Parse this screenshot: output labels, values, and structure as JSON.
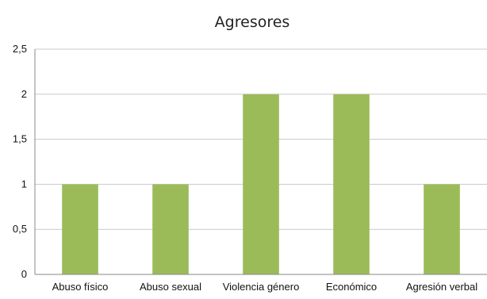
{
  "chart_data": {
    "type": "bar",
    "title": "Agresores",
    "categories": [
      "Abuso físico",
      "Abuso sexual",
      "Violencia género",
      "Económico",
      "Agresión verbal"
    ],
    "values": [
      1,
      1,
      2,
      2,
      1
    ],
    "ylim": [
      0,
      2.5
    ],
    "yticks": [
      "0",
      "0,5",
      "1",
      "1,5",
      "2",
      "2,5"
    ],
    "grid": true,
    "legend": "none",
    "bar_color": "#9bbb59"
  }
}
